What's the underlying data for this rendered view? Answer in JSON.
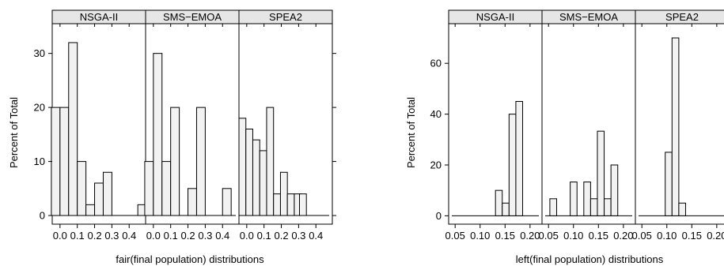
{
  "colors": {
    "bar_fill": "#f2f2f2",
    "strip_fill": "#e6e6e6",
    "frame": "#000000"
  },
  "chart_data": [
    {
      "type": "bar",
      "layout": "trellis histogram, 3 panels side by side",
      "xlabel": "fair(final population)  distributions",
      "ylabel": "Percent of Total",
      "ylim": [
        -1.6,
        35.5
      ],
      "yticks": [
        0,
        10,
        20,
        30
      ],
      "xlim": [
        -0.045,
        0.495
      ],
      "xtick_labels": [
        "0.0",
        "0.1",
        "0.2",
        "0.3",
        "0.4"
      ],
      "xtick_values": [
        0.0,
        0.1,
        0.2,
        0.3,
        0.4
      ],
      "panels": [
        {
          "name": "NSGA-II",
          "bin_width": 0.05,
          "bins": [
            {
              "x": -0.025,
              "y": 20
            },
            {
              "x": 0.025,
              "y": 20
            },
            {
              "x": 0.075,
              "y": 32
            },
            {
              "x": 0.125,
              "y": 10
            },
            {
              "x": 0.175,
              "y": 2
            },
            {
              "x": 0.225,
              "y": 6
            },
            {
              "x": 0.275,
              "y": 8
            },
            {
              "x": 0.325,
              "y": 0
            },
            {
              "x": 0.375,
              "y": 0
            },
            {
              "x": 0.425,
              "y": 0
            },
            {
              "x": 0.475,
              "y": 2
            }
          ]
        },
        {
          "name": "SMS−EMOA",
          "bin_width": 0.05,
          "bins": [
            {
              "x": -0.025,
              "y": 10
            },
            {
              "x": 0.025,
              "y": 30
            },
            {
              "x": 0.075,
              "y": 10
            },
            {
              "x": 0.125,
              "y": 20
            },
            {
              "x": 0.175,
              "y": 0
            },
            {
              "x": 0.225,
              "y": 5
            },
            {
              "x": 0.275,
              "y": 20
            },
            {
              "x": 0.325,
              "y": 0
            },
            {
              "x": 0.375,
              "y": 0
            },
            {
              "x": 0.425,
              "y": 5
            }
          ]
        },
        {
          "name": "SPEA2",
          "bin_width": 0.04,
          "bins": [
            {
              "x": -0.025,
              "y": 18
            },
            {
              "x": 0.015,
              "y": 16
            },
            {
              "x": 0.055,
              "y": 14
            },
            {
              "x": 0.095,
              "y": 12
            },
            {
              "x": 0.135,
              "y": 20
            },
            {
              "x": 0.175,
              "y": 4
            },
            {
              "x": 0.215,
              "y": 8
            },
            {
              "x": 0.255,
              "y": 4
            },
            {
              "x": 0.295,
              "y": 4
            },
            {
              "x": 0.325,
              "y": 4
            }
          ]
        }
      ]
    },
    {
      "type": "bar",
      "layout": "trellis histogram, 3 panels side by side",
      "xlabel": "left(final population)  distributions",
      "ylabel": "Percent of Total",
      "ylim": [
        -3.3,
        75.6
      ],
      "yticks": [
        0,
        20,
        40,
        60
      ],
      "xlim": [
        0.037,
        0.224
      ],
      "xtick_labels": [
        "0.05",
        "0.10",
        "0.15",
        "0.20"
      ],
      "xtick_values": [
        0.05,
        0.1,
        0.15,
        0.2
      ],
      "panels": [
        {
          "name": "NSGA-II",
          "bin_width": 0.0136,
          "bins": [
            {
              "x": 0.1376,
              "y": 10
            },
            {
              "x": 0.1512,
              "y": 5
            },
            {
              "x": 0.1648,
              "y": 40
            },
            {
              "x": 0.1784,
              "y": 45
            }
          ]
        },
        {
          "name": "SMS−EMOA",
          "bin_width": 0.0136,
          "bins": [
            {
              "x": 0.0595,
              "y": 6.7
            },
            {
              "x": 0.0731,
              "y": 0
            },
            {
              "x": 0.0867,
              "y": 0
            },
            {
              "x": 0.1003,
              "y": 13.3
            },
            {
              "x": 0.1139,
              "y": 0
            },
            {
              "x": 0.1275,
              "y": 13.3
            },
            {
              "x": 0.1411,
              "y": 6.7
            },
            {
              "x": 0.1547,
              "y": 33.3
            },
            {
              "x": 0.1683,
              "y": 6.7
            },
            {
              "x": 0.1819,
              "y": 20
            }
          ]
        },
        {
          "name": "SPEA2",
          "bin_width": 0.0136,
          "bins": [
            {
              "x": 0.1036,
              "y": 25
            },
            {
              "x": 0.1172,
              "y": 70
            },
            {
              "x": 0.1308,
              "y": 5
            }
          ]
        }
      ]
    }
  ]
}
